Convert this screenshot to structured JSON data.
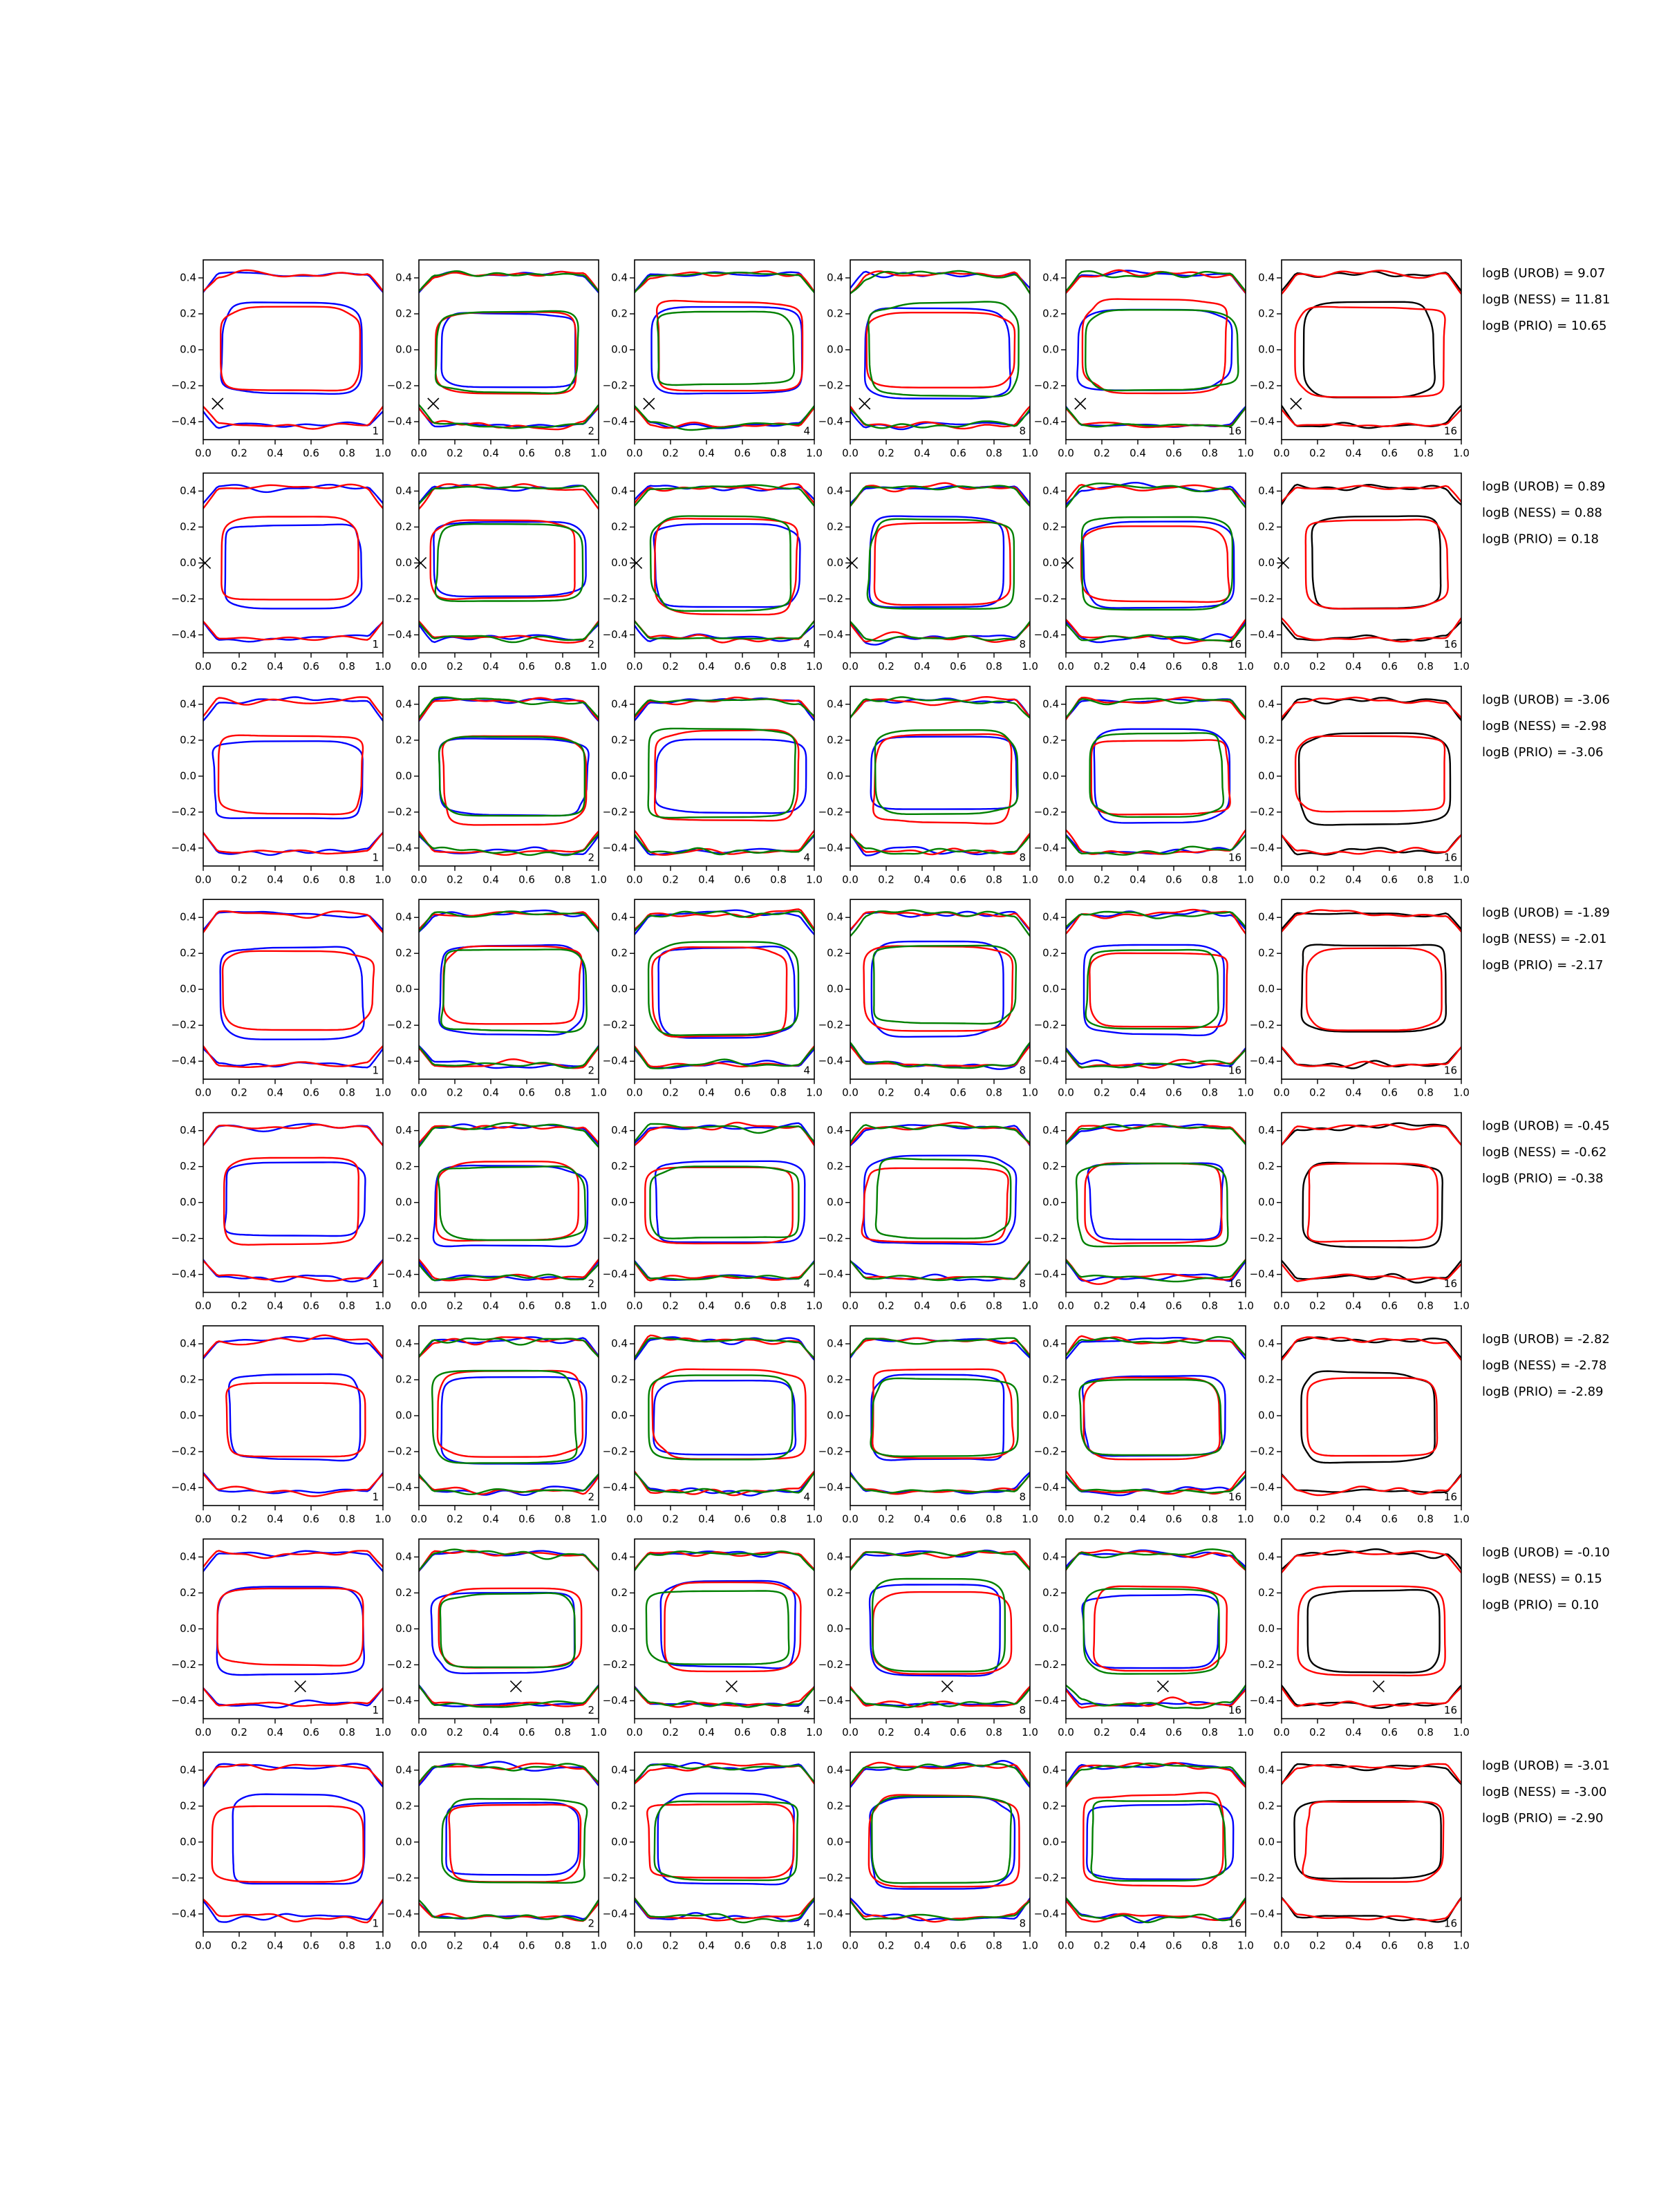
{
  "chart_data": {
    "type": "contour-grid",
    "xlim": [
      0,
      1
    ],
    "ylim": [
      -0.5,
      0.5
    ],
    "xticks": [
      {
        "value": 0,
        "label": "0.0"
      },
      0.2,
      0.4,
      0.6,
      0.8,
      {
        "value": 1,
        "label": "1.0"
      }
    ],
    "yticks": [
      {
        "value": -0.4,
        "label": "−0.4"
      },
      {
        "value": -0.2,
        "label": "−0.2"
      },
      {
        "value": 0,
        "label": "0.0"
      },
      0.2,
      0.4
    ],
    "panel_labels": [
      "1",
      "2",
      "4",
      "8",
      "16",
      "16"
    ],
    "column_colors": [
      [
        "blue",
        "red"
      ],
      [
        "blue",
        "red",
        "green"
      ],
      [
        "blue",
        "red",
        "green"
      ],
      [
        "blue",
        "red",
        "green"
      ],
      [
        "blue",
        "red",
        "green"
      ],
      [
        "black",
        "red"
      ]
    ],
    "marker_color": "black",
    "rows": [
      {
        "annotations": [
          "logB (UROB) = 9.07",
          "logB (NESS) = 11.81",
          "logB (PRIO) = 10.65"
        ],
        "marker_x": 0.08,
        "marker_y": -0.3
      },
      {
        "annotations": [
          "logB (UROB) = 0.89",
          "logB (NESS) = 0.88",
          "logB (PRIO) = 0.18"
        ],
        "marker_x": 0.01,
        "marker_y": 0
      },
      {
        "annotations": [
          "logB (UROB) = -3.06",
          "logB (NESS) = -2.98",
          "logB (PRIO) = -3.06"
        ]
      },
      {
        "annotations": [
          "logB (UROB) = -1.89",
          "logB (NESS) = -2.01",
          "logB (PRIO) = -2.17"
        ]
      },
      {
        "annotations": [
          "logB (UROB) = -0.45",
          "logB (NESS) = -0.62",
          "logB (PRIO) = -0.38"
        ]
      },
      {
        "annotations": [
          "logB (UROB) = -2.82",
          "logB (NESS) = -2.78",
          "logB (PRIO) = -2.89"
        ]
      },
      {
        "annotations": [
          "logB (UROB) = -0.10",
          "logB (NESS) = 0.15",
          "logB (PRIO) = 0.10"
        ],
        "marker_x": 0.54,
        "marker_y": -0.32
      },
      {
        "annotations": [
          "logB (UROB) = -3.01",
          "logB (NESS) = -3.00",
          "logB (PRIO) = -2.90"
        ]
      }
    ]
  }
}
